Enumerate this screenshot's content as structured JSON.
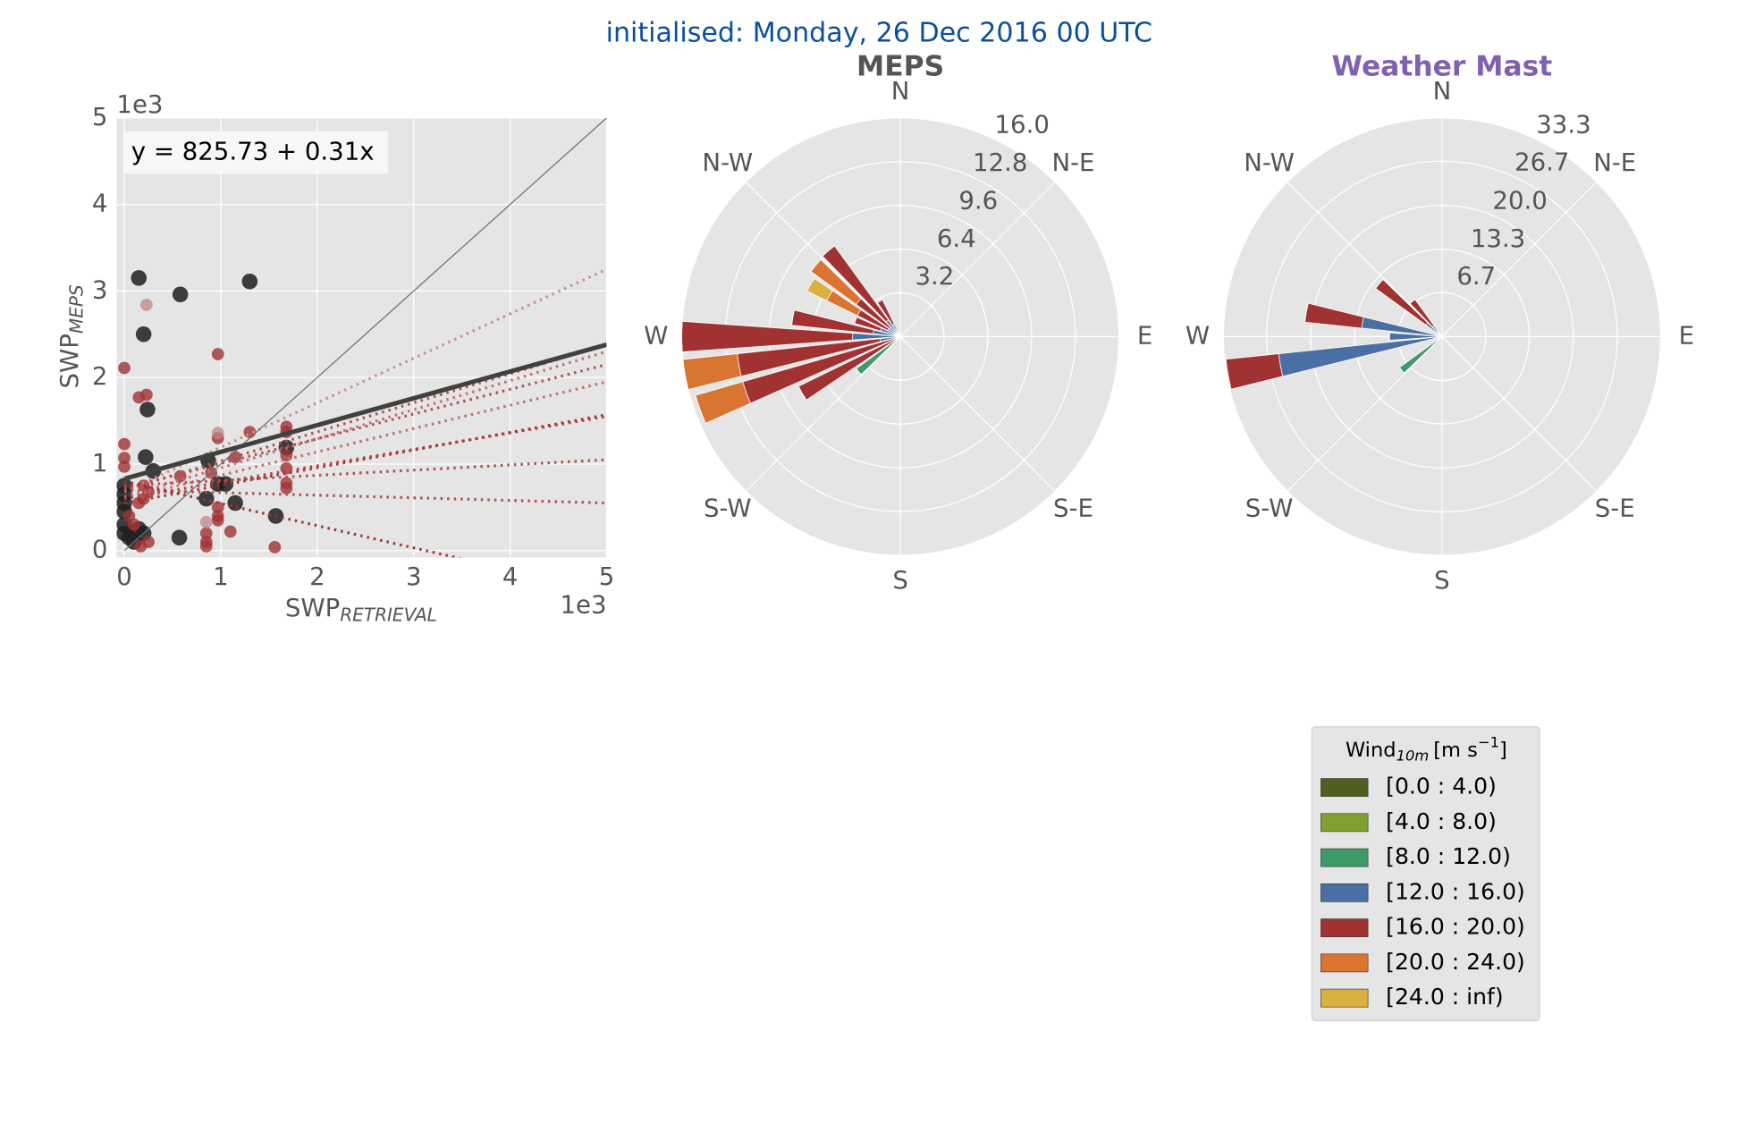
{
  "title": "initialised: Monday, 26 Dec 2016 00 UTC",
  "chart_data": [
    {
      "type": "scatter",
      "xlabel": {
        "text": "SWP",
        "sub": "RETRIEVAL"
      },
      "ylabel": {
        "text": "SWP",
        "sub": "MEPS"
      },
      "x_offset": "1e3",
      "y_offset": "1e3",
      "annotation": "y = 825.73 + 0.31x",
      "xlim": [
        -0.08,
        5
      ],
      "ylim": [
        -0.08,
        5
      ],
      "xticks": [
        0,
        1,
        2,
        3,
        4,
        5
      ],
      "yticks": [
        0,
        1,
        2,
        3,
        4,
        5
      ],
      "grid": true,
      "series": [
        {
          "color": "#1e1e1e",
          "opacity": 0.85,
          "x": [
            0.15,
            0.58,
            1.3,
            0.2,
            0.24,
            0.22,
            0.3,
            0.87,
            0.97,
            1.05,
            0.85,
            1.15,
            1.57,
            1.68,
            0.57,
            0,
            0,
            0,
            0,
            0,
            0,
            0.05,
            0.1,
            0.15,
            0.2
          ],
          "values": [
            3.15,
            2.96,
            3.11,
            2.5,
            1.63,
            1.08,
            0.92,
            1.04,
            0.77,
            0.77,
            0.6,
            0.55,
            0.4,
            1.19,
            0.15,
            0.75,
            0.65,
            0.55,
            0.45,
            0.3,
            0.2,
            0.15,
            0.1,
            0.25,
            0.2
          ]
        },
        {
          "color": "#a03232",
          "opacity": 0.8,
          "x": [
            0,
            0.15,
            0.23,
            0.97,
            0,
            0,
            0,
            0.97,
            1.3,
            1.68,
            1.68,
            1.68,
            1.68,
            1.68,
            1.68,
            1.15,
            0.58,
            0.97,
            0.97,
            0.97,
            0.85,
            0.85,
            0.85,
            1.1,
            1.56,
            0.2,
            0.2,
            0.25,
            0.15,
            0.17,
            0.25,
            0.1,
            0.05,
            0.9
          ],
          "values": [
            2.11,
            1.77,
            1.8,
            2.27,
            1.23,
            1.07,
            0.97,
            1.3,
            1.37,
            1.43,
            1.37,
            1.1,
            0.95,
            0.78,
            0.72,
            1.08,
            0.86,
            0.5,
            0.4,
            0.35,
            0.2,
            0.1,
            0.05,
            0.22,
            0.04,
            0.75,
            0.6,
            0.68,
            0.55,
            0.05,
            0.1,
            0.3,
            0.4,
            0.9
          ]
        },
        {
          "color": "#c08585",
          "opacity": 0.75,
          "x": [
            0.23,
            0.97,
            0.85
          ],
          "values": [
            2.84,
            1.36,
            0.33
          ]
        }
      ],
      "lines": [
        {
          "color": "#c89090",
          "width": 2.5,
          "style": "dotted",
          "x": [
            0,
            5
          ],
          "y": [
            0.68,
            3.25
          ]
        },
        {
          "color": "#b05050",
          "width": 2.5,
          "style": "dotted",
          "x": [
            0,
            5
          ],
          "y": [
            0.7,
            2.38
          ]
        },
        {
          "color": "#c07070",
          "width": 2.5,
          "style": "dotted",
          "x": [
            0,
            5
          ],
          "y": [
            0.62,
            2.3
          ]
        },
        {
          "color": "#b05050",
          "width": 2.5,
          "style": "dotted",
          "x": [
            0,
            5
          ],
          "y": [
            0.72,
            2.15
          ]
        },
        {
          "color": "#c07070",
          "width": 2.5,
          "style": "dotted",
          "x": [
            0,
            5
          ],
          "y": [
            0.6,
            1.95
          ]
        },
        {
          "color": "#a03232",
          "width": 2.5,
          "style": "dotted",
          "x": [
            0,
            5
          ],
          "y": [
            0.55,
            1.57
          ]
        },
        {
          "color": "#b04040",
          "width": 2.5,
          "style": "dotted",
          "x": [
            0,
            5
          ],
          "y": [
            0.6,
            1.55
          ]
        },
        {
          "color": "#b05050",
          "width": 2.5,
          "style": "dotted",
          "x": [
            0,
            5
          ],
          "y": [
            0.75,
            1.05
          ]
        },
        {
          "color": "#b05050",
          "width": 2.5,
          "style": "dotted",
          "x": [
            0,
            5
          ],
          "y": [
            0.7,
            0.55
          ]
        },
        {
          "color": "#a03232",
          "width": 2.5,
          "style": "dotted",
          "x": [
            0,
            5
          ],
          "y": [
            0.8,
            -0.48
          ]
        },
        {
          "color": "#707070",
          "width": 1,
          "style": "solid",
          "x": [
            0,
            5
          ],
          "y": [
            0,
            5
          ]
        },
        {
          "color": "#404040",
          "width": 4,
          "style": "solid",
          "x": [
            0,
            5
          ],
          "y": [
            0.83,
            2.38
          ]
        }
      ]
    },
    {
      "type": "windrose",
      "title": "MEPS",
      "title_color": "#555555",
      "rlim": [
        0,
        16
      ],
      "rticks": [
        3.2,
        6.4,
        9.6,
        12.8,
        {
          "value": 16,
          "label": "16.0"
        }
      ],
      "direction_labels": [
        "N",
        "N-E",
        "E",
        "S-E",
        "S",
        "S-W",
        "W",
        "N-W"
      ],
      "directions": [
        230,
        240,
        250,
        260,
        270,
        280,
        290,
        300,
        310,
        320,
        330
      ],
      "series": [
        {
          "values": [
            0,
            0,
            0,
            0,
            0,
            0,
            0,
            0,
            0,
            0,
            0
          ]
        },
        {
          "values": [
            0,
            0,
            0,
            0,
            0,
            0,
            0,
            0,
            0,
            0,
            0
          ]
        },
        {
          "values": [
            4,
            0,
            0,
            0,
            0,
            0,
            0,
            0,
            0,
            0,
            0
          ]
        },
        {
          "values": [
            0,
            0,
            0,
            1.5,
            3.5,
            2,
            1.5,
            1,
            1,
            1.5,
            1
          ]
        },
        {
          "values": [
            0,
            8.3,
            12,
            10.5,
            12.5,
            6,
            2,
            2.5,
            3,
            6.7,
            2
          ]
        },
        {
          "values": [
            0,
            0,
            3.6,
            4,
            0,
            0,
            0,
            2.5,
            4.1,
            0,
            0
          ]
        },
        {
          "values": [
            0,
            0,
            0,
            0,
            0,
            0,
            0,
            1.6,
            0,
            0,
            0
          ]
        }
      ]
    },
    {
      "type": "windrose",
      "title": "Weather Mast",
      "title_color": "#8060b0",
      "rlim": [
        0,
        33.3
      ],
      "rticks": [
        6.7,
        13.3,
        {
          "value": 20,
          "label": "20.0"
        },
        26.7,
        33.3
      ],
      "direction_labels": [
        "N",
        "N-E",
        "E",
        "S-E",
        "S",
        "S-W",
        "W",
        "N-W"
      ],
      "directions": [
        230,
        260,
        270,
        280,
        310,
        320
      ],
      "series": [
        {
          "values": [
            0,
            0,
            0,
            0,
            0,
            0
          ]
        },
        {
          "values": [
            0,
            0,
            0,
            0,
            0,
            0
          ]
        },
        {
          "values": [
            8,
            0,
            0,
            0,
            0,
            0
          ]
        },
        {
          "values": [
            0,
            25,
            8,
            12.3,
            3,
            2
          ]
        },
        {
          "values": [
            0,
            8.1,
            0,
            8.7,
            9.5,
            5
          ]
        },
        {
          "values": [
            0,
            0,
            0,
            0,
            0,
            0
          ]
        },
        {
          "values": [
            0,
            0,
            0,
            0,
            0,
            0
          ]
        }
      ]
    }
  ],
  "legend": {
    "title": "Wind",
    "title_sub": "10m",
    "title_unit": "[m s",
    "title_sup": "−1",
    "title_end": "]",
    "entries": [
      {
        "name": "[0.0 : 4.0)",
        "color": "#4f5f1f"
      },
      {
        "name": "[4.0 : 8.0)",
        "color": "#80a030"
      },
      {
        "name": "[8.0 : 12.0)",
        "color": "#3f9a6a"
      },
      {
        "name": "[12.0 : 16.0)",
        "color": "#4a6fa5"
      },
      {
        "name": "[16.0 : 20.0)",
        "color": "#a03232"
      },
      {
        "name": "[20.0 : 24.0)",
        "color": "#d97530"
      },
      {
        "name": "[24.0 : inf)",
        "color": "#dab040"
      }
    ]
  }
}
